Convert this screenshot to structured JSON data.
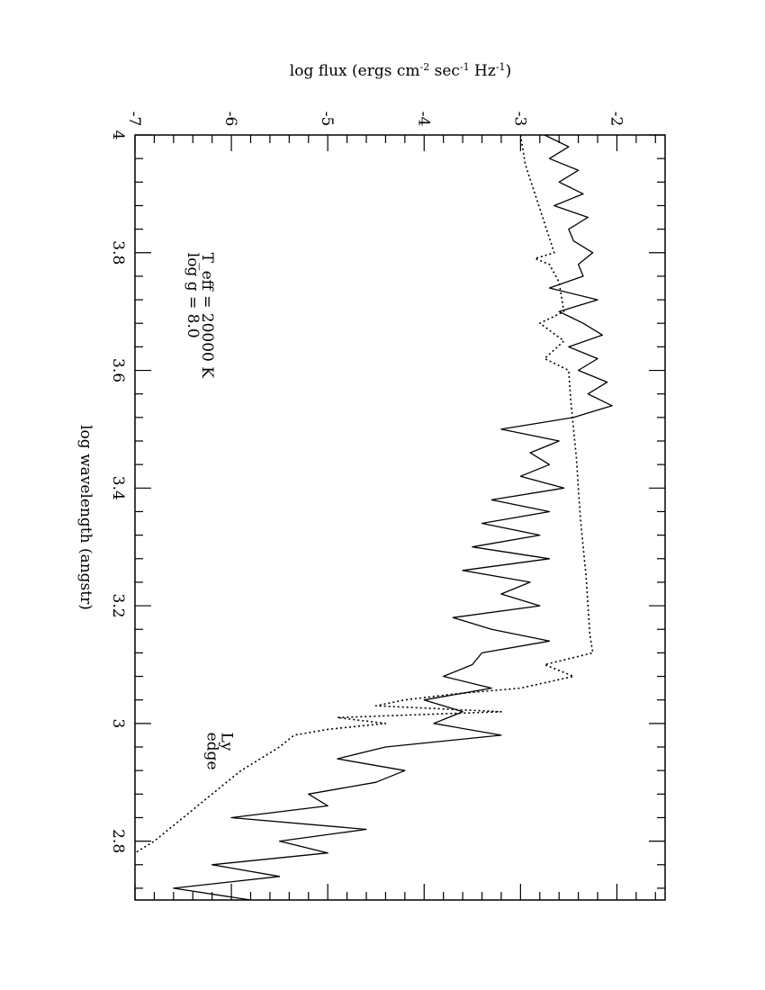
{
  "chart_data": {
    "type": "line",
    "orientation": "rotated-90-clockwise",
    "xlabel": "log wavelength (angstr)",
    "ylabel": "log flux (ergs cm-2 sec-1 Hz-1)",
    "ylabel_parts": {
      "a": "log flux (ergs cm",
      "b": "-2",
      "c": " sec",
      "d": "-1",
      "e": " Hz",
      "f": "-1",
      "g": ")"
    },
    "xlim": [
      4.0,
      2.7
    ],
    "ylim": [
      -7.0,
      -1.5
    ],
    "x_ticks": [
      {
        "value": 4.0,
        "label": "4"
      },
      {
        "value": 3.8,
        "label": "3.8"
      },
      {
        "value": 3.6,
        "label": "3.6"
      },
      {
        "value": 3.4,
        "label": "3.4"
      },
      {
        "value": 3.2,
        "label": "3.2"
      },
      {
        "value": 3.0,
        "label": "3"
      },
      {
        "value": 2.8,
        "label": "2.8"
      }
    ],
    "y_ticks": [
      {
        "value": -7,
        "label": "-7"
      },
      {
        "value": -6,
        "label": "-6"
      },
      {
        "value": -5,
        "label": "-5"
      },
      {
        "value": -4,
        "label": "-4"
      },
      {
        "value": -3,
        "label": "-3"
      },
      {
        "value": -2,
        "label": "-2"
      }
    ],
    "annotations": [
      {
        "text": "T_eff = 20000 K",
        "x": 3.8,
        "y": -6.3
      },
      {
        "text": "log g = 8.0",
        "x": 3.8,
        "y": -6.45
      },
      {
        "text": "Ly",
        "x": 2.985,
        "y": -6.1
      },
      {
        "text": "edge",
        "x": 2.985,
        "y": -6.25
      }
    ],
    "series": [
      {
        "style": "solid",
        "x": [
          4.0,
          3.98,
          3.96,
          3.94,
          3.92,
          3.9,
          3.88,
          3.86,
          3.84,
          3.82,
          3.8,
          3.78,
          3.76,
          3.74,
          3.72,
          3.7,
          3.68,
          3.66,
          3.64,
          3.62,
          3.6,
          3.58,
          3.56,
          3.54,
          3.52,
          3.5,
          3.48,
          3.46,
          3.44,
          3.42,
          3.4,
          3.38,
          3.36,
          3.34,
          3.32,
          3.3,
          3.28,
          3.26,
          3.24,
          3.22,
          3.2,
          3.18,
          3.16,
          3.14,
          3.12,
          3.1,
          3.08,
          3.06,
          3.04,
          3.02,
          3.0,
          2.98,
          2.96,
          2.94,
          2.92,
          2.9,
          2.88,
          2.86,
          2.84,
          2.82,
          2.8,
          2.78,
          2.76,
          2.74,
          2.72,
          2.7
        ],
        "y": [
          -2.75,
          -2.5,
          -2.7,
          -2.4,
          -2.6,
          -2.35,
          -2.65,
          -2.3,
          -2.5,
          -2.45,
          -2.25,
          -2.4,
          -2.35,
          -2.7,
          -2.2,
          -2.6,
          -2.35,
          -2.15,
          -2.5,
          -2.2,
          -2.4,
          -2.1,
          -2.3,
          -2.05,
          -2.45,
          -3.2,
          -2.6,
          -2.9,
          -2.7,
          -3.0,
          -2.55,
          -3.3,
          -2.7,
          -3.4,
          -2.8,
          -3.5,
          -2.7,
          -3.6,
          -2.9,
          -3.2,
          -2.8,
          -3.7,
          -3.3,
          -2.7,
          -3.4,
          -3.5,
          -3.8,
          -3.3,
          -4.0,
          -3.6,
          -3.9,
          -3.2,
          -4.4,
          -4.9,
          -4.2,
          -4.5,
          -5.2,
          -5.0,
          -6.0,
          -4.6,
          -5.5,
          -5.0,
          -6.2,
          -5.5,
          -6.6,
          -5.8
        ]
      },
      {
        "style": "dotted",
        "x": [
          4.0,
          3.95,
          3.9,
          3.85,
          3.8,
          3.79,
          3.78,
          3.75,
          3.7,
          3.68,
          3.65,
          3.62,
          3.6,
          3.55,
          3.5,
          3.45,
          3.4,
          3.35,
          3.3,
          3.25,
          3.2,
          3.15,
          3.12,
          3.1,
          3.08,
          3.06,
          3.05,
          3.04,
          3.03,
          3.02,
          3.01,
          3.0,
          2.99,
          2.98,
          2.96,
          2.94,
          2.92,
          2.9,
          2.88,
          2.86,
          2.84,
          2.82,
          2.8,
          2.78
        ],
        "y": [
          -3.0,
          -2.95,
          -2.85,
          -2.75,
          -2.65,
          -2.85,
          -2.7,
          -2.6,
          -2.55,
          -2.8,
          -2.55,
          -2.75,
          -2.5,
          -2.48,
          -2.45,
          -2.42,
          -2.4,
          -2.38,
          -2.35,
          -2.32,
          -2.3,
          -2.28,
          -2.25,
          -2.75,
          -2.45,
          -3.0,
          -3.7,
          -4.2,
          -4.5,
          -3.2,
          -4.9,
          -4.4,
          -5.0,
          -5.35,
          -5.5,
          -5.7,
          -5.9,
          -6.05,
          -6.2,
          -6.35,
          -6.5,
          -6.65,
          -6.8,
          -7.0
        ]
      }
    ]
  }
}
